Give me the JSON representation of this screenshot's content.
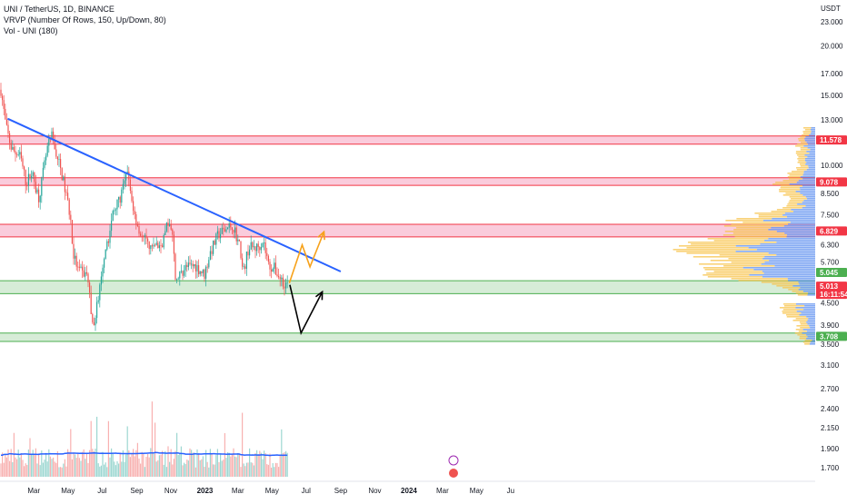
{
  "legend": {
    "symbol": "UNI / TetherUS, 1D, BINANCE",
    "vrvp": "VRVP (Number Of Rows, 150, Up/Down, 80)",
    "vol": "Vol - UNI (180)"
  },
  "currency": "USDT",
  "colors": {
    "up": "#26a69a",
    "down": "#ef5350",
    "trendline": "#2962ff",
    "resistance_fill": "#f8bbd0",
    "resistance_edge": "#f23645",
    "support_fill": "#c8e6c9",
    "support_edge": "#4caf50",
    "orange_arrow": "#f7a21b",
    "black_arrow": "#000000",
    "vp_up": "#f7c349",
    "vp_down": "#5b8def",
    "vol_ma": "#2962ff"
  },
  "chart_data": {
    "type": "candlestick",
    "y_scale": "log",
    "price_ticks": [
      "23.000",
      "20.000",
      "17.000",
      "15.000",
      "13.000",
      "10.000",
      "8.500",
      "7.500",
      "6.300",
      "5.700",
      "4.500",
      "3.900",
      "3.500",
      "3.100",
      "2.700",
      "2.400",
      "2.150",
      "1.900",
      "1.700"
    ],
    "time_ticks": [
      "Mar",
      "May",
      "Jul",
      "Sep",
      "Nov",
      "2023",
      "Mar",
      "May",
      "Jul",
      "Sep",
      "Nov",
      "2024",
      "Mar",
      "May",
      "Ju"
    ],
    "price_labels": [
      {
        "value": "11.578",
        "kind": "resistance"
      },
      {
        "value": "9.078",
        "kind": "resistance"
      },
      {
        "value": "6.829",
        "kind": "resistance"
      },
      {
        "value": "5.045",
        "kind": "support"
      },
      {
        "value": "5.013",
        "kind": "last"
      },
      {
        "value": "16:11:54",
        "kind": "countdown"
      },
      {
        "value": "3.708",
        "kind": "support"
      }
    ],
    "zones": [
      {
        "kind": "resistance",
        "low": 11.3,
        "high": 11.85
      },
      {
        "kind": "resistance",
        "low": 8.9,
        "high": 9.3
      },
      {
        "kind": "resistance",
        "low": 6.6,
        "high": 7.1
      },
      {
        "kind": "support",
        "low": 4.75,
        "high": 5.12
      },
      {
        "kind": "support",
        "low": 3.6,
        "high": 3.78
      }
    ],
    "trendline": {
      "start": {
        "date": "2022-01-13",
        "price": 13.1
      },
      "end": {
        "date": "2023-09-01",
        "price": 5.4
      }
    },
    "last_price": 5.013
  }
}
